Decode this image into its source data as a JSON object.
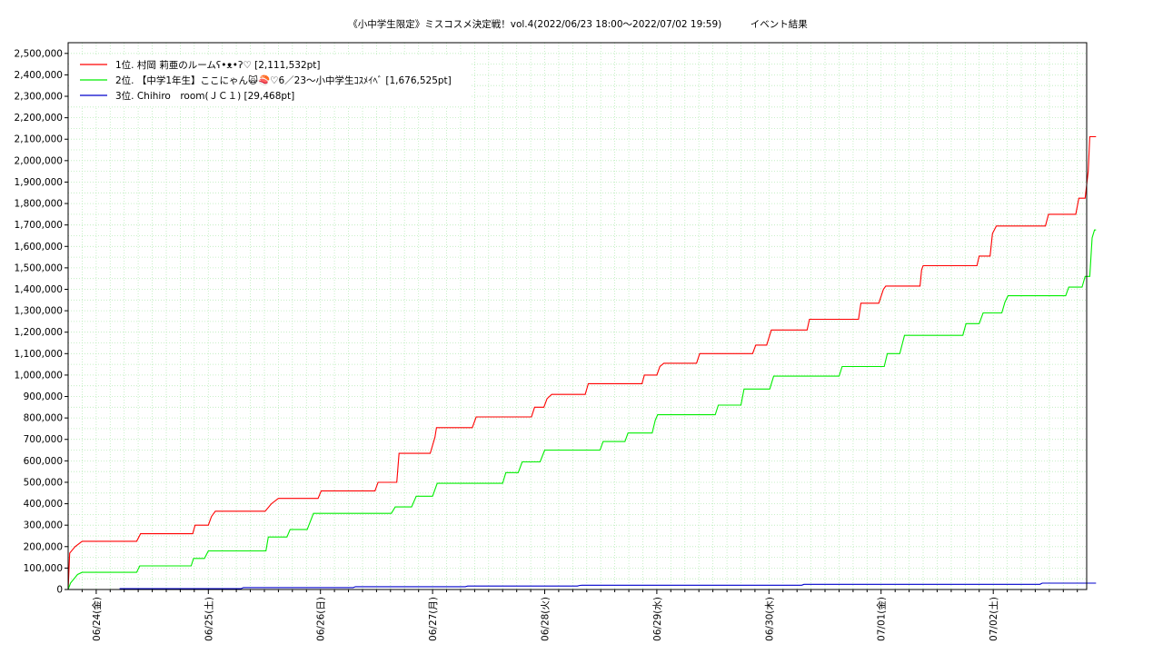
{
  "chart_data": {
    "type": "line",
    "title": "《小中学生限定》ミスコスメ決定戦！vol.4(2022/06/23 18:00～2022/07/02 19:59)　　　イベント結果",
    "xlabel": "",
    "ylabel": "",
    "ylim": [
      0,
      2550000
    ],
    "xlim": [
      "2022-06-23 18:00",
      "2022-07-02 20:00"
    ],
    "grid": true,
    "legend_position": "top-left",
    "y_ticks": [
      "0",
      "100,000",
      "200,000",
      "300,000",
      "400,000",
      "500,000",
      "600,000",
      "700,000",
      "800,000",
      "900,000",
      "1,000,000",
      "1,100,000",
      "1,200,000",
      "1,300,000",
      "1,400,000",
      "1,500,000",
      "1,600,000",
      "1,700,000",
      "1,800,000",
      "1,900,000",
      "2,000,000",
      "2,100,000",
      "2,200,000",
      "2,300,000",
      "2,400,000",
      "2,500,000"
    ],
    "x_ticks": [
      "06/24(金)",
      "06/25(土)",
      "06/26(日)",
      "06/27(月)",
      "06/28(火)",
      "06/29(水)",
      "06/30(木)",
      "07/01(金)",
      "07/02(土)"
    ],
    "series": [
      {
        "name": "1位. 村岡 莉亜のルームʕ•ᴥ•ʔ♡ [2,111,532pt]",
        "color": "#ff0000",
        "points": [
          [
            "2022-06-23 18:00",
            0
          ],
          [
            "2022-06-23 18:20",
            170000
          ],
          [
            "2022-06-23 19:30",
            200000
          ],
          [
            "2022-06-23 21:00",
            225000
          ],
          [
            "2022-06-24 08:40",
            225000
          ],
          [
            "2022-06-24 09:30",
            260000
          ],
          [
            "2022-06-24 20:40",
            260000
          ],
          [
            "2022-06-24 21:10",
            300000
          ],
          [
            "2022-06-25 00:00",
            300000
          ],
          [
            "2022-06-25 00:40",
            340000
          ],
          [
            "2022-06-25 01:30",
            365000
          ],
          [
            "2022-06-25 12:10",
            365000
          ],
          [
            "2022-06-25 13:30",
            400000
          ],
          [
            "2022-06-25 15:00",
            425000
          ],
          [
            "2022-06-25 23:30",
            425000
          ],
          [
            "2022-06-26 00:10",
            460000
          ],
          [
            "2022-06-26 11:40",
            460000
          ],
          [
            "2022-06-26 12:20",
            500000
          ],
          [
            "2022-06-26 16:20",
            500000
          ],
          [
            "2022-06-26 16:50",
            635000
          ],
          [
            "2022-06-26 23:30",
            635000
          ],
          [
            "2022-06-27 00:30",
            710000
          ],
          [
            "2022-06-27 00:50",
            755000
          ],
          [
            "2022-06-27 08:30",
            755000
          ],
          [
            "2022-06-27 09:20",
            805000
          ],
          [
            "2022-06-27 21:10",
            805000
          ],
          [
            "2022-06-27 21:50",
            850000
          ],
          [
            "2022-06-27 23:50",
            850000
          ],
          [
            "2022-06-28 00:30",
            890000
          ],
          [
            "2022-06-28 01:30",
            910000
          ],
          [
            "2022-06-28 08:40",
            910000
          ],
          [
            "2022-06-28 09:20",
            960000
          ],
          [
            "2022-06-28 20:50",
            960000
          ],
          [
            "2022-06-28 21:20",
            1000000
          ],
          [
            "2022-06-29 00:00",
            1000000
          ],
          [
            "2022-06-29 00:40",
            1040000
          ],
          [
            "2022-06-29 01:30",
            1055000
          ],
          [
            "2022-06-29 08:30",
            1055000
          ],
          [
            "2022-06-29 09:10",
            1100000
          ],
          [
            "2022-06-29 20:30",
            1100000
          ],
          [
            "2022-06-29 21:10",
            1140000
          ],
          [
            "2022-06-29 23:30",
            1140000
          ],
          [
            "2022-06-30 00:30",
            1210000
          ],
          [
            "2022-06-30 08:10",
            1210000
          ],
          [
            "2022-06-30 08:40",
            1260000
          ],
          [
            "2022-06-30 19:10",
            1260000
          ],
          [
            "2022-06-30 19:40",
            1335000
          ],
          [
            "2022-06-30 23:30",
            1335000
          ],
          [
            "2022-07-01 00:30",
            1400000
          ],
          [
            "2022-07-01 01:00",
            1415000
          ],
          [
            "2022-07-01 08:20",
            1415000
          ],
          [
            "2022-07-01 08:40",
            1490000
          ],
          [
            "2022-07-01 09:00",
            1510000
          ],
          [
            "2022-07-01 20:30",
            1510000
          ],
          [
            "2022-07-01 21:00",
            1555000
          ],
          [
            "2022-07-01 23:20",
            1555000
          ],
          [
            "2022-07-01 23:50",
            1660000
          ],
          [
            "2022-07-02 00:40",
            1695000
          ],
          [
            "2022-07-02 11:10",
            1695000
          ],
          [
            "2022-07-02 11:50",
            1750000
          ],
          [
            "2022-07-02 17:40",
            1750000
          ],
          [
            "2022-07-02 18:20",
            1825000
          ],
          [
            "2022-07-02 19:40",
            1825000
          ],
          [
            "2022-07-02 20:20",
            1950000
          ],
          [
            "2022-07-02 20:40",
            2111532
          ],
          [
            "2022-07-02 22:00",
            2111532
          ]
        ]
      },
      {
        "name": "2位. 【中学1年生】ここにゃん🙀🍣♡6／23〜小中学生ｺｽﾒｲﾍﾞ [1,676,525pt]",
        "color": "#00ee00",
        "points": [
          [
            "2022-06-23 18:00",
            0
          ],
          [
            "2022-06-23 18:30",
            30000
          ],
          [
            "2022-06-23 20:00",
            70000
          ],
          [
            "2022-06-23 21:00",
            80000
          ],
          [
            "2022-06-24 08:40",
            80000
          ],
          [
            "2022-06-24 09:20",
            110000
          ],
          [
            "2022-06-24 20:20",
            110000
          ],
          [
            "2022-06-24 20:50",
            145000
          ],
          [
            "2022-06-24 23:10",
            145000
          ],
          [
            "2022-06-25 00:00",
            180000
          ],
          [
            "2022-06-25 12:20",
            180000
          ],
          [
            "2022-06-25 12:50",
            245000
          ],
          [
            "2022-06-25 16:50",
            245000
          ],
          [
            "2022-06-25 17:30",
            280000
          ],
          [
            "2022-06-25 21:10",
            280000
          ],
          [
            "2022-06-25 22:30",
            355000
          ],
          [
            "2022-06-26 15:10",
            355000
          ],
          [
            "2022-06-26 16:00",
            385000
          ],
          [
            "2022-06-26 19:30",
            385000
          ],
          [
            "2022-06-26 20:30",
            435000
          ],
          [
            "2022-06-27 00:00",
            435000
          ],
          [
            "2022-06-27 01:00",
            495000
          ],
          [
            "2022-06-27 15:00",
            495000
          ],
          [
            "2022-06-27 15:40",
            545000
          ],
          [
            "2022-06-27 18:20",
            545000
          ],
          [
            "2022-06-27 19:10",
            595000
          ],
          [
            "2022-06-27 23:00",
            595000
          ],
          [
            "2022-06-28 00:00",
            650000
          ],
          [
            "2022-06-28 11:50",
            650000
          ],
          [
            "2022-06-28 12:30",
            690000
          ],
          [
            "2022-06-28 17:10",
            690000
          ],
          [
            "2022-06-28 17:50",
            730000
          ],
          [
            "2022-06-28 23:00",
            730000
          ],
          [
            "2022-06-28 23:40",
            790000
          ],
          [
            "2022-06-29 00:10",
            815000
          ],
          [
            "2022-06-29 12:30",
            815000
          ],
          [
            "2022-06-29 13:10",
            860000
          ],
          [
            "2022-06-29 18:00",
            860000
          ],
          [
            "2022-06-29 18:40",
            935000
          ],
          [
            "2022-06-30 00:10",
            935000
          ],
          [
            "2022-06-30 01:00",
            995000
          ],
          [
            "2022-06-30 15:00",
            995000
          ],
          [
            "2022-06-30 15:40",
            1040000
          ],
          [
            "2022-07-01 00:40",
            1040000
          ],
          [
            "2022-07-01 01:20",
            1100000
          ],
          [
            "2022-07-01 04:00",
            1100000
          ],
          [
            "2022-07-01 05:00",
            1185000
          ],
          [
            "2022-07-01 17:30",
            1185000
          ],
          [
            "2022-07-01 18:10",
            1240000
          ],
          [
            "2022-07-01 21:00",
            1240000
          ],
          [
            "2022-07-01 21:50",
            1290000
          ],
          [
            "2022-07-02 01:50",
            1290000
          ],
          [
            "2022-07-02 02:30",
            1340000
          ],
          [
            "2022-07-02 03:10",
            1370000
          ],
          [
            "2022-07-02 15:30",
            1370000
          ],
          [
            "2022-07-02 16:10",
            1410000
          ],
          [
            "2022-07-02 19:00",
            1410000
          ],
          [
            "2022-07-02 19:40",
            1460000
          ],
          [
            "2022-07-02 20:40",
            1460000
          ],
          [
            "2022-07-02 21:10",
            1640000
          ],
          [
            "2022-07-02 21:40",
            1676525
          ],
          [
            "2022-07-02 22:00",
            1676525
          ]
        ]
      },
      {
        "name": "3位. Chihiro　room(ＪＣ１) [29,468pt]",
        "color": "#0000cc",
        "points": [
          [
            "2022-06-24 05:00",
            4000
          ],
          [
            "2022-06-25 07:00",
            4000
          ],
          [
            "2022-06-25 07:30",
            9000
          ],
          [
            "2022-06-26 07:00",
            9000
          ],
          [
            "2022-06-26 07:30",
            13000
          ],
          [
            "2022-06-27 07:00",
            13000
          ],
          [
            "2022-06-27 07:30",
            16000
          ],
          [
            "2022-06-28 07:00",
            16000
          ],
          [
            "2022-06-28 07:30",
            19000
          ],
          [
            "2022-06-28 08:00",
            20000
          ],
          [
            "2022-06-30 07:00",
            20000
          ],
          [
            "2022-06-30 07:30",
            24000
          ],
          [
            "2022-07-02 10:00",
            24000
          ],
          [
            "2022-07-02 10:30",
            29468
          ],
          [
            "2022-07-02 22:00",
            29468
          ]
        ]
      }
    ]
  }
}
